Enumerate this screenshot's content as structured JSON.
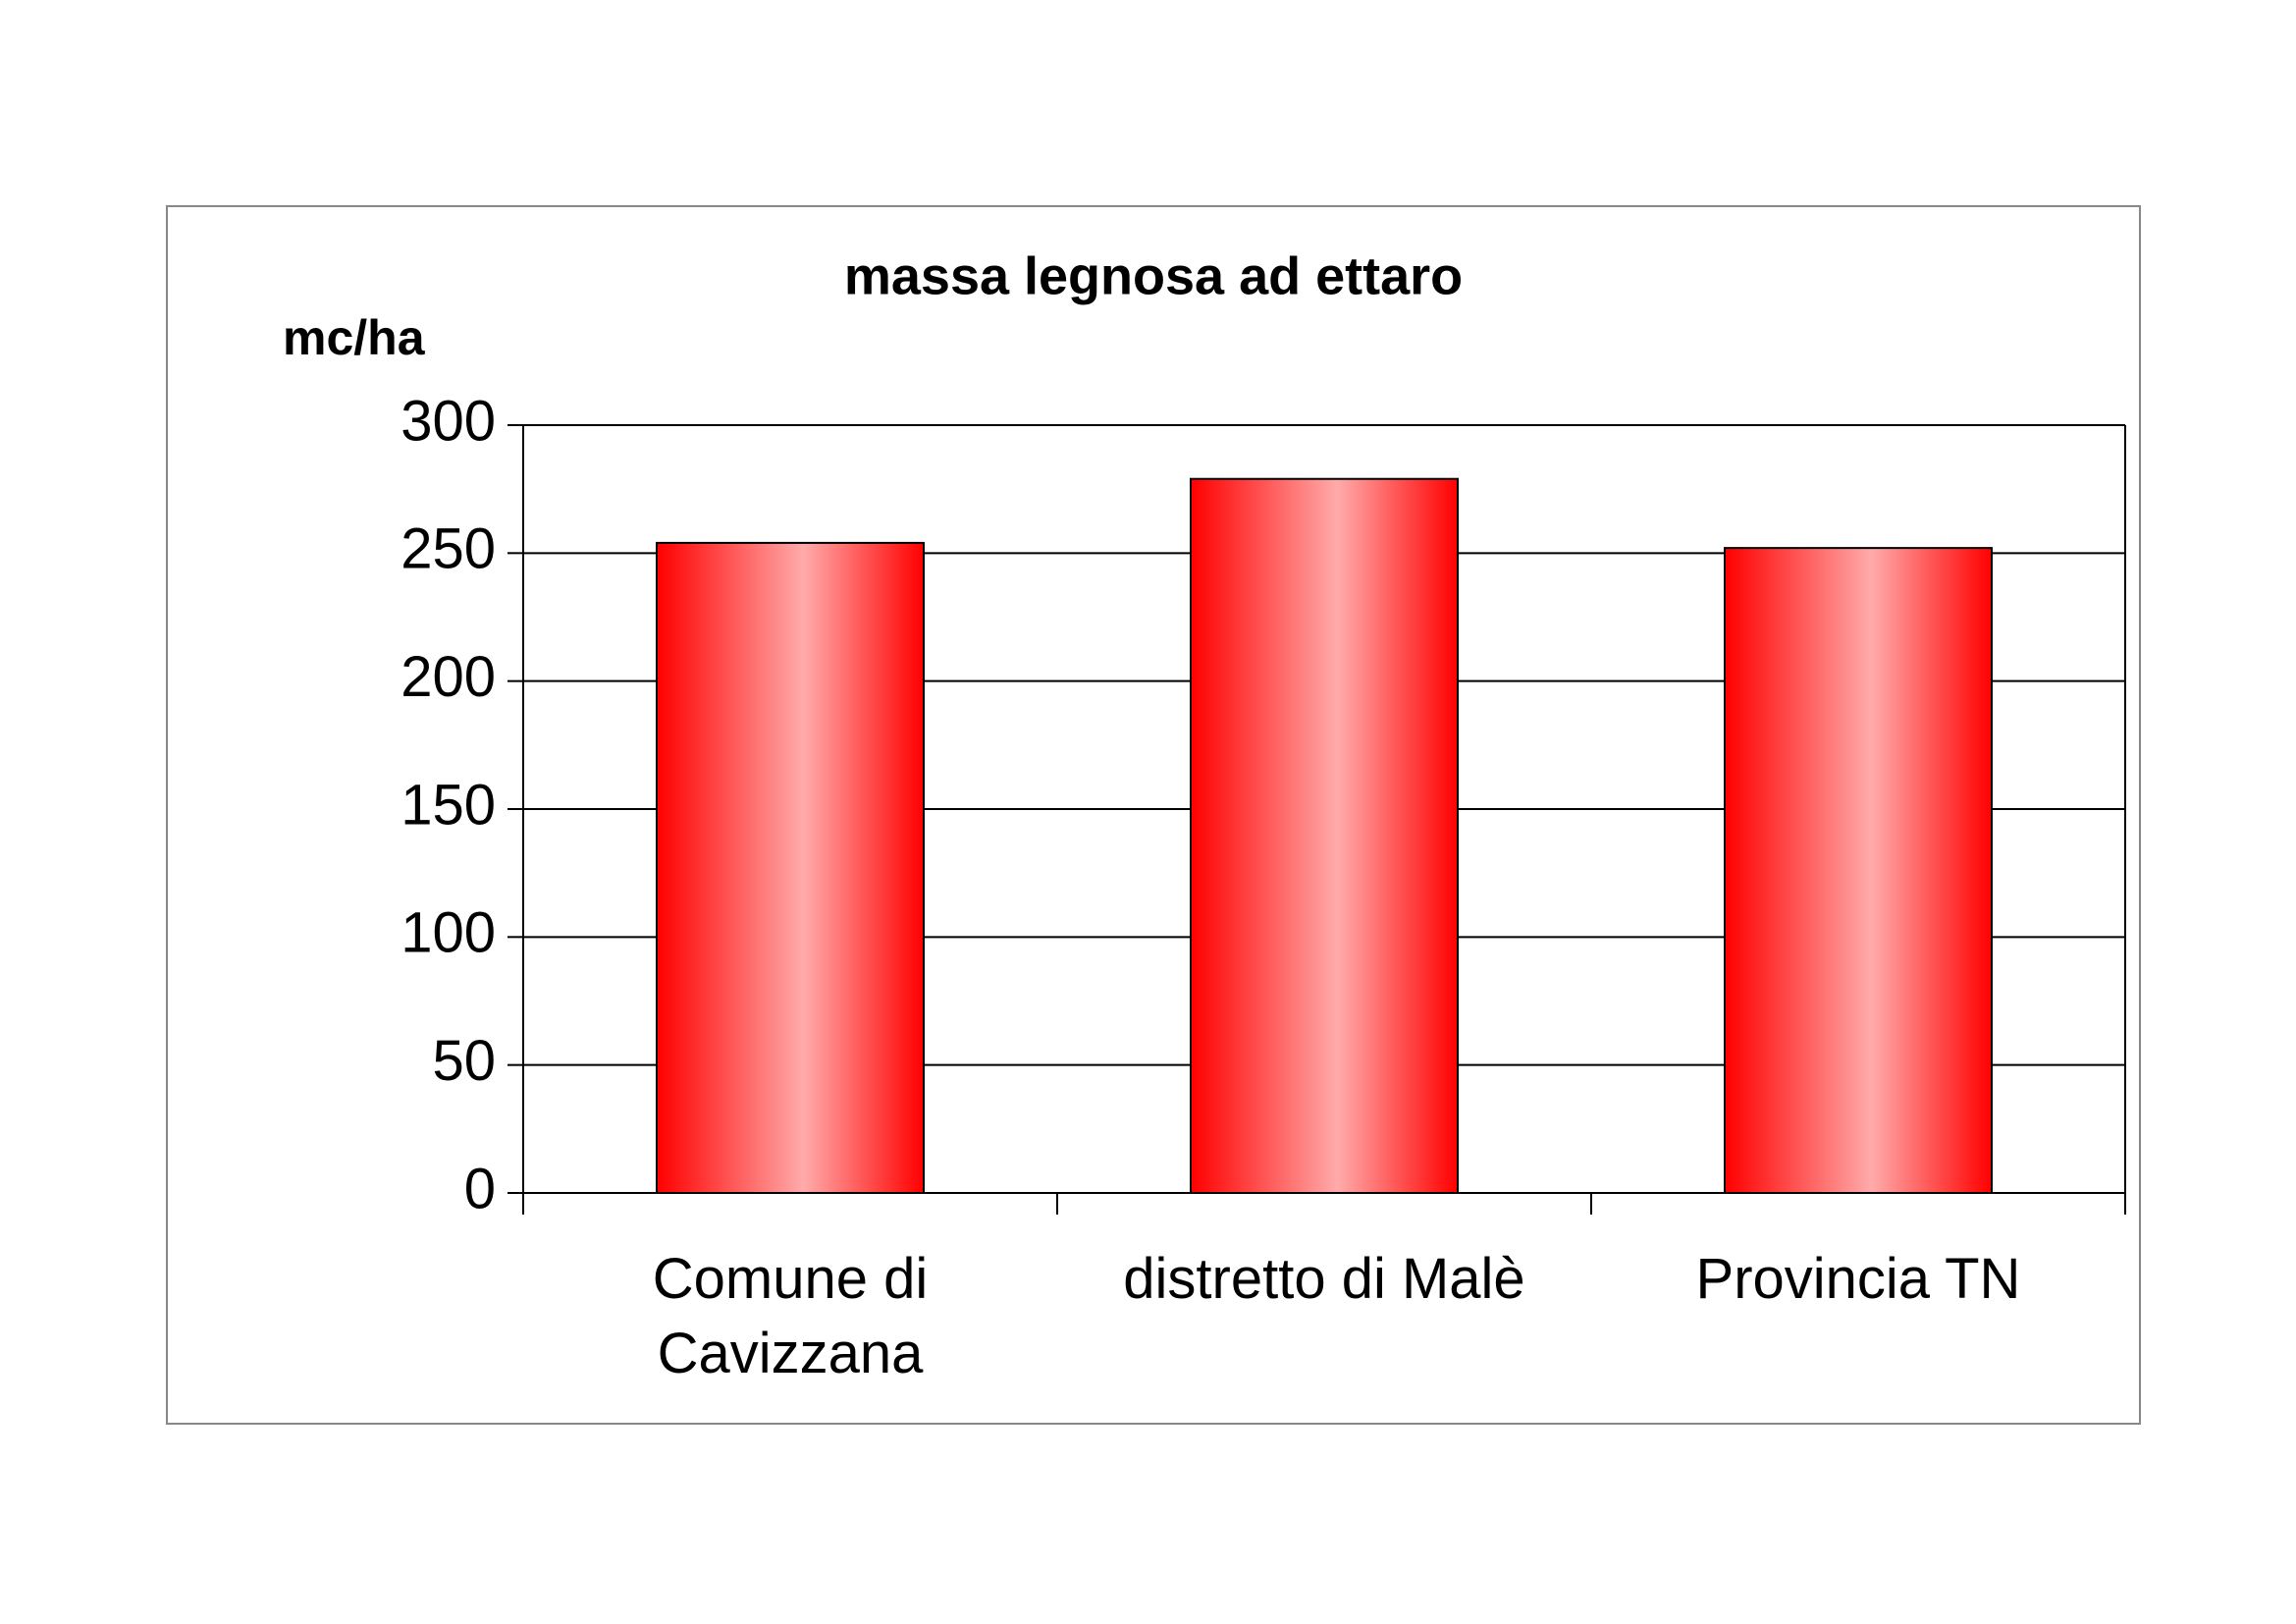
{
  "chart_data": {
    "type": "bar",
    "title": "massa legnosa ad ettaro",
    "y_label": "mc/ha",
    "categories": [
      "Comune di Cavizzana",
      "distretto di Malè",
      "Provincia TN"
    ],
    "values": [
      254,
      279,
      252
    ],
    "color": "#ff0000",
    "ylim": [
      0,
      300
    ],
    "yticks": [
      0,
      50,
      100,
      150,
      200,
      250,
      300
    ],
    "grid": true
  }
}
